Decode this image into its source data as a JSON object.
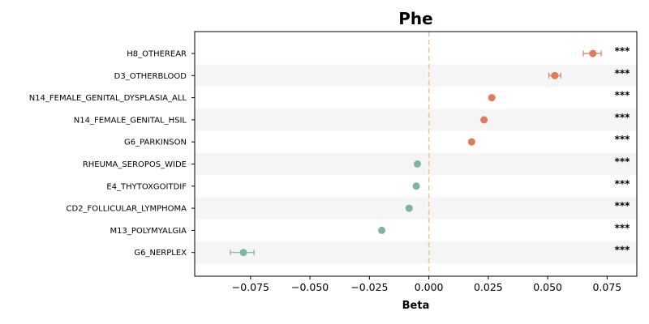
{
  "chart_data": {
    "type": "scatter",
    "title": "Phe",
    "xlabel": "Beta",
    "ylabel": "",
    "xlim": [
      -0.0985,
      0.0875
    ],
    "xticks": [
      -0.075,
      -0.05,
      -0.025,
      0.0,
      0.025,
      0.05,
      0.075
    ],
    "xtick_labels": [
      "−0.075",
      "−0.050",
      "−0.025",
      "0.000",
      "0.025",
      "0.050",
      "0.075"
    ],
    "reference_line_x": 0.0,
    "grid": false,
    "alternating_row_bands": true,
    "points": [
      {
        "label": "H8_OTHEREAR",
        "beta": 0.069,
        "ci_low": 0.065,
        "ci_high": 0.0725,
        "significance": "***"
      },
      {
        "label": "D3_OTHERBLOOD",
        "beta": 0.053,
        "ci_low": 0.0505,
        "ci_high": 0.0555,
        "significance": "***"
      },
      {
        "label": "N14_FEMALE_GENITAL_DYSPLASIA_ALL",
        "beta": 0.0265,
        "ci_low": 0.0258,
        "ci_high": 0.0272,
        "significance": "***"
      },
      {
        "label": "N14_FEMALE_GENITAL_HSIL",
        "beta": 0.0232,
        "ci_low": 0.0226,
        "ci_high": 0.0238,
        "significance": "***"
      },
      {
        "label": "G6_PARKINSON",
        "beta": 0.018,
        "ci_low": 0.0175,
        "ci_high": 0.0185,
        "significance": "***"
      },
      {
        "label": "RHEUMA_SEROPOS_WIDE",
        "beta": -0.0048,
        "ci_low": -0.0053,
        "ci_high": -0.0043,
        "significance": "***"
      },
      {
        "label": "E4_THYTOXGOITDIF",
        "beta": -0.0053,
        "ci_low": -0.0058,
        "ci_high": -0.0048,
        "significance": "***"
      },
      {
        "label": "CD2_FOLLICULAR_LYMPHOMA",
        "beta": -0.0083,
        "ci_low": -0.0089,
        "ci_high": -0.0077,
        "significance": "***"
      },
      {
        "label": "M13_POLYMYALGIA",
        "beta": -0.0198,
        "ci_low": -0.0204,
        "ci_high": -0.0192,
        "significance": "***"
      },
      {
        "label": "G6_NERPLEX",
        "beta": -0.078,
        "ci_low": -0.0835,
        "ci_high": -0.0735,
        "significance": "***"
      }
    ],
    "colors": {
      "positive": "#e07a5f",
      "negative": "#81b29a",
      "reference_line": "#f2c48d",
      "band": "#f5f5f5"
    }
  }
}
